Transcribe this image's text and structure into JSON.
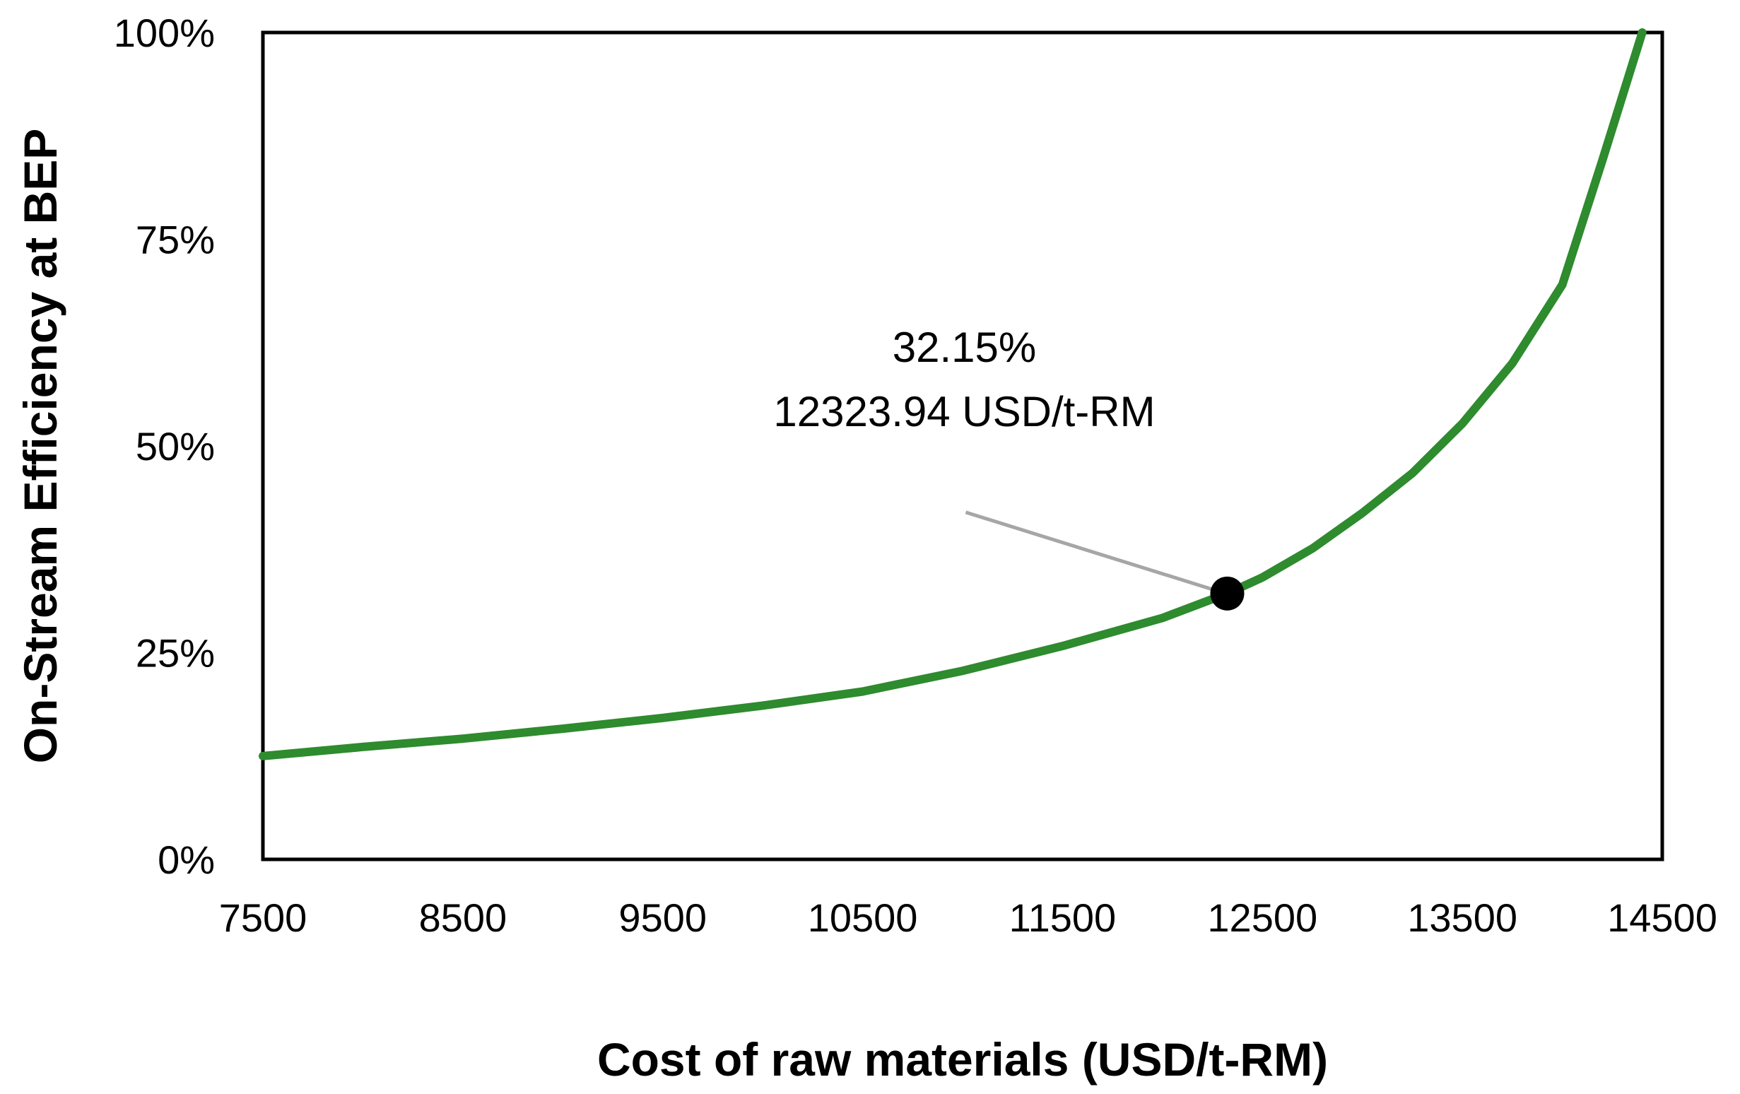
{
  "chart_data": {
    "type": "line",
    "xlabel": "Cost of raw materials (USD/t-RM)",
    "ylabel": "On-Stream Efficiency at BEP",
    "xlim": [
      7500,
      14500
    ],
    "ylim": [
      0,
      100
    ],
    "x_ticks": [
      "7500",
      "8500",
      "9500",
      "10500",
      "11500",
      "12500",
      "13500",
      "14500"
    ],
    "y_ticks": [
      "0%",
      "25%",
      "50%",
      "75%",
      "100%"
    ],
    "grid": false,
    "legend": "none",
    "series_color": "#2e8b2e",
    "series": [
      {
        "x": [
          7500,
          8000,
          8500,
          9000,
          9500,
          10000,
          10500,
          11000,
          11500,
          12000,
          12323.94,
          12500,
          12750,
          13000,
          13250,
          13500,
          13750,
          14000,
          14200,
          14400
        ],
        "y": [
          12.5,
          13.6,
          14.6,
          15.8,
          17.1,
          18.6,
          20.3,
          22.8,
          25.8,
          29.2,
          32.15,
          34.1,
          37.6,
          41.9,
          46.7,
          52.7,
          60.0,
          69.5,
          84.5,
          100
        ]
      }
    ],
    "highlight": {
      "x": 12323.94,
      "y": 32.15,
      "label_line1": "32.15%",
      "label_line2": "12323.94 USD/t-RM",
      "color": "#000000"
    }
  }
}
